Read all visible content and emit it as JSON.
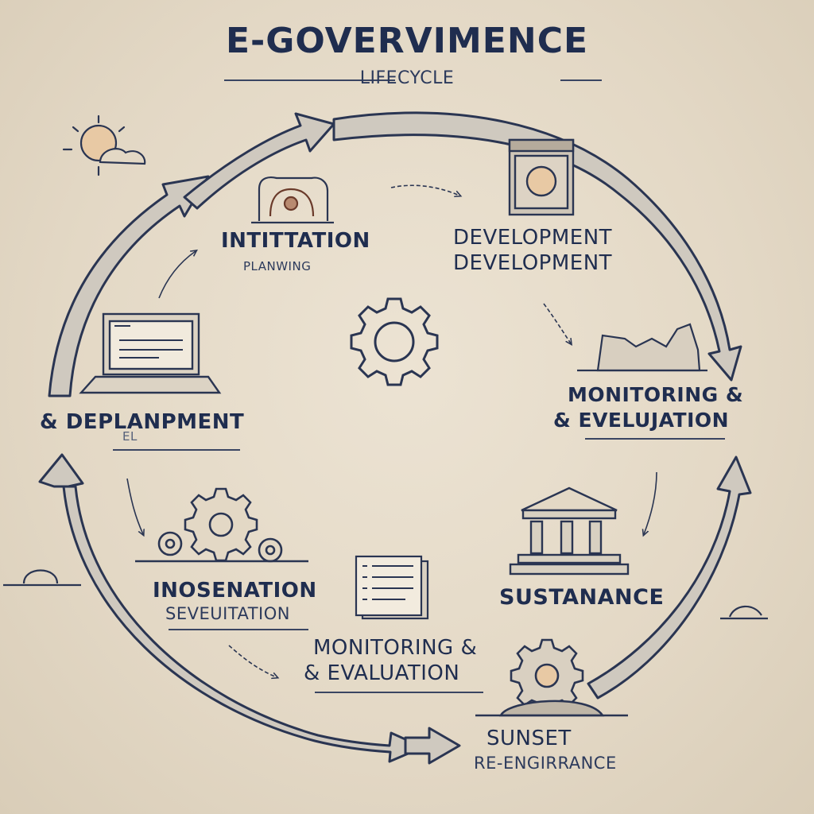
{
  "title": {
    "main": "E-GOVERVIMENCE",
    "sub": "LIFECYCLE"
  },
  "stages": [
    {
      "id": "initiation",
      "title": "INTITTATION",
      "subtitle": "PLANWING"
    },
    {
      "id": "development",
      "title": "DEVELOPMENT",
      "subtitle": "DEVELOPMENT"
    },
    {
      "id": "monitoring-1",
      "title": "MONITORING &",
      "subtitle": "& EVELUJATION"
    },
    {
      "id": "deployment",
      "title": "& DEPLANPMENT",
      "subtitle": "EL"
    },
    {
      "id": "inosenation",
      "title": "INOSENATION",
      "subtitle": "SEVEUITATION"
    },
    {
      "id": "monitoring-2",
      "title": "MONITORING &",
      "subtitle": "& EVALUATION"
    },
    {
      "id": "sustanance",
      "title": "SUSTANANCE",
      "subtitle": ""
    },
    {
      "id": "sunset",
      "title": "SUNSET",
      "subtitle": "RE-ENGIRRANCE"
    }
  ],
  "icons": [
    "sun-cloud-icon",
    "archway-icon",
    "document-box-icon",
    "laptop-icon",
    "gear-icon",
    "mountain-chart-icon",
    "gears-icon",
    "checklist-icon",
    "government-building-icon",
    "sunset-gear-icon"
  ],
  "colors": {
    "ink": "#1f2d4f",
    "arrow": "#2a3552",
    "background": "#e6dcca",
    "accent": "#e8c9a4"
  }
}
